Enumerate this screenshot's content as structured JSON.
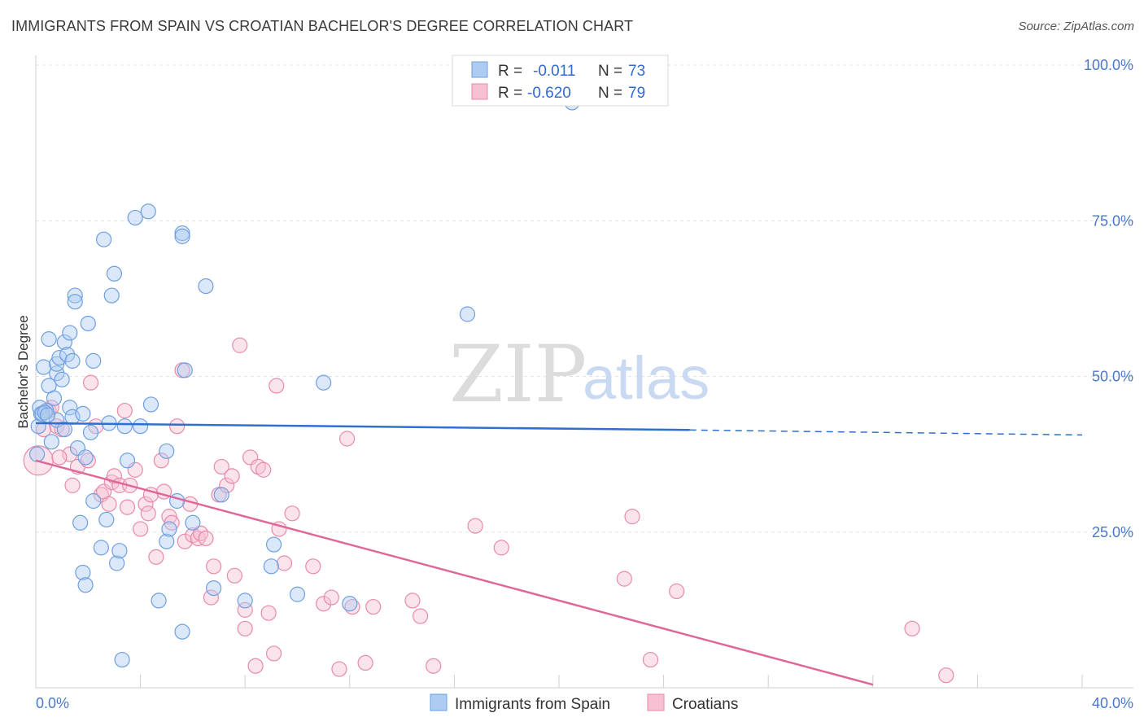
{
  "title": "IMMIGRANTS FROM SPAIN VS CROATIAN BACHELOR'S DEGREE CORRELATION CHART",
  "source": "Source: ZipAtlas.com",
  "watermark": {
    "zip": "ZIP",
    "atlas": "atlas"
  },
  "colors": {
    "blue_fill": "#aecbf2",
    "blue_stroke": "#6f9fdf",
    "blue_line": "#2f6fce",
    "pink_fill": "#f6c0d2",
    "pink_stroke": "#e88aab",
    "pink_line": "#e0669a",
    "grid": "#e2e2e2",
    "accent": "#4a78c8"
  },
  "legend": {
    "r_label": "R =",
    "n_label": "N =",
    "rows": [
      {
        "r": "-0.011",
        "n": "73"
      },
      {
        "r": "-0.620",
        "n": "79"
      }
    ]
  },
  "chart_data": {
    "type": "scatter",
    "title": "IMMIGRANTS FROM SPAIN VS CROATIAN BACHELOR'S DEGREE CORRELATION CHART",
    "xlabel": "",
    "ylabel": "Bachelor's Degree",
    "xlim": [
      0,
      40
    ],
    "ylim": [
      0,
      100
    ],
    "x_tick_labels": [
      "0.0%",
      "40.0%"
    ],
    "y_ticks": [
      25,
      50,
      75,
      100
    ],
    "y_tick_labels": [
      "25.0%",
      "50.0%",
      "75.0%",
      "100.0%"
    ],
    "grid": true,
    "legend_position": "top-center",
    "series": [
      {
        "name": "Immigrants from Spain",
        "color": "blue",
        "trend": {
          "x": [
            0,
            25,
            40
          ],
          "y": [
            42.5,
            41.4,
            40.6
          ],
          "solid_until": 25
        },
        "points": [
          [
            0.1,
            42.0,
            1
          ],
          [
            0.2,
            44.0,
            1
          ],
          [
            0.3,
            51.5,
            1
          ],
          [
            0.4,
            44.5,
            1
          ],
          [
            0.5,
            48.5,
            1
          ],
          [
            0.5,
            56.0,
            1
          ],
          [
            0.6,
            39.5,
            1
          ],
          [
            0.7,
            46.5,
            1
          ],
          [
            0.8,
            43.0,
            1
          ],
          [
            0.8,
            50.5,
            1
          ],
          [
            0.8,
            52.0,
            1
          ],
          [
            0.9,
            53.0,
            1
          ],
          [
            1.0,
            49.5,
            1
          ],
          [
            1.1,
            41.5,
            1
          ],
          [
            1.1,
            55.5,
            1
          ],
          [
            1.2,
            53.5,
            1
          ],
          [
            1.3,
            45.0,
            1
          ],
          [
            1.3,
            57.0,
            1
          ],
          [
            1.4,
            43.5,
            1
          ],
          [
            1.4,
            52.5,
            1
          ],
          [
            1.5,
            63.0,
            1
          ],
          [
            1.5,
            62.0,
            1
          ],
          [
            1.6,
            38.5,
            1
          ],
          [
            1.7,
            26.5,
            1
          ],
          [
            1.8,
            44.0,
            1
          ],
          [
            1.8,
            18.5,
            1
          ],
          [
            1.9,
            16.5,
            1
          ],
          [
            1.9,
            37.0,
            1
          ],
          [
            2.0,
            58.5,
            1
          ],
          [
            2.1,
            41.0,
            1
          ],
          [
            2.2,
            52.5,
            1
          ],
          [
            2.2,
            30.0,
            1
          ],
          [
            2.5,
            22.5,
            1
          ],
          [
            2.6,
            72.0,
            1
          ],
          [
            2.7,
            27.0,
            1
          ],
          [
            2.8,
            42.5,
            1
          ],
          [
            2.9,
            63.0,
            1
          ],
          [
            3.0,
            66.5,
            1
          ],
          [
            3.1,
            20.0,
            1
          ],
          [
            3.2,
            22.0,
            1
          ],
          [
            3.3,
            4.5,
            1
          ],
          [
            3.4,
            42.0,
            1
          ],
          [
            3.5,
            36.5,
            1
          ],
          [
            3.8,
            75.5,
            1
          ],
          [
            4.0,
            42.0,
            1
          ],
          [
            4.3,
            76.5,
            1
          ],
          [
            4.4,
            45.5,
            1
          ],
          [
            4.7,
            14.0,
            1
          ],
          [
            5.0,
            23.5,
            1
          ],
          [
            5.0,
            38.0,
            1
          ],
          [
            5.1,
            25.5,
            1
          ],
          [
            5.4,
            30.0,
            1
          ],
          [
            5.6,
            73.0,
            1
          ],
          [
            5.6,
            72.5,
            1
          ],
          [
            5.6,
            9.0,
            1
          ],
          [
            5.7,
            51.0,
            1
          ],
          [
            6.0,
            26.5,
            1
          ],
          [
            6.5,
            64.5,
            1
          ],
          [
            6.8,
            16.0,
            1
          ],
          [
            7.1,
            31.0,
            1
          ],
          [
            8.0,
            14.0,
            1
          ],
          [
            9.0,
            19.5,
            1
          ],
          [
            9.1,
            23.0,
            1
          ],
          [
            10.0,
            15.0,
            1
          ],
          [
            11.0,
            49.0,
            1
          ],
          [
            12.0,
            13.5,
            1
          ],
          [
            16.5,
            60.0,
            1
          ],
          [
            20.5,
            94.0,
            1
          ],
          [
            0.05,
            37.5,
            1
          ],
          [
            0.15,
            45.0,
            1
          ],
          [
            0.25,
            44.0,
            1
          ],
          [
            0.35,
            44.2,
            1
          ],
          [
            0.45,
            43.8,
            1
          ]
        ]
      },
      {
        "name": "Croatians",
        "color": "pink",
        "trend": {
          "x": [
            0,
            32
          ],
          "y": [
            36.5,
            0.5
          ]
        },
        "points": [
          [
            0.1,
            36.5,
            2
          ],
          [
            0.5,
            44.5,
            1
          ],
          [
            0.6,
            45.0,
            1
          ],
          [
            0.8,
            42.0,
            1
          ],
          [
            1.0,
            41.5,
            1
          ],
          [
            1.3,
            37.5,
            1
          ],
          [
            1.4,
            32.5,
            1
          ],
          [
            1.6,
            35.5,
            1
          ],
          [
            2.0,
            36.5,
            1
          ],
          [
            2.1,
            49.0,
            1
          ],
          [
            2.3,
            42.0,
            1
          ],
          [
            2.5,
            31.0,
            1
          ],
          [
            2.6,
            31.5,
            1
          ],
          [
            2.8,
            29.5,
            1
          ],
          [
            2.9,
            33.0,
            1
          ],
          [
            3.0,
            34.0,
            1
          ],
          [
            3.2,
            32.5,
            1
          ],
          [
            3.4,
            44.5,
            1
          ],
          [
            3.5,
            29.0,
            1
          ],
          [
            3.6,
            32.5,
            1
          ],
          [
            3.8,
            35.0,
            1
          ],
          [
            4.0,
            25.5,
            1
          ],
          [
            4.2,
            29.5,
            1
          ],
          [
            4.3,
            28.0,
            1
          ],
          [
            4.4,
            31.0,
            1
          ],
          [
            4.6,
            21.0,
            1
          ],
          [
            4.8,
            36.5,
            1
          ],
          [
            4.9,
            31.5,
            1
          ],
          [
            5.1,
            27.5,
            1
          ],
          [
            5.2,
            26.5,
            1
          ],
          [
            5.4,
            42.0,
            1
          ],
          [
            5.6,
            51.0,
            1
          ],
          [
            5.7,
            23.5,
            1
          ],
          [
            5.9,
            29.5,
            1
          ],
          [
            6.0,
            24.5,
            1
          ],
          [
            6.2,
            24.0,
            1
          ],
          [
            6.3,
            24.8,
            1
          ],
          [
            6.5,
            24.0,
            1
          ],
          [
            6.7,
            14.5,
            1
          ],
          [
            6.8,
            19.5,
            1
          ],
          [
            7.0,
            31.0,
            1
          ],
          [
            7.1,
            35.5,
            1
          ],
          [
            7.3,
            32.5,
            1
          ],
          [
            7.5,
            34.0,
            1
          ],
          [
            7.6,
            18.0,
            1
          ],
          [
            7.8,
            55.0,
            1
          ],
          [
            8.0,
            12.5,
            1
          ],
          [
            8.0,
            9.5,
            1
          ],
          [
            8.2,
            37.0,
            1
          ],
          [
            8.4,
            3.5,
            1
          ],
          [
            8.5,
            35.5,
            1
          ],
          [
            8.7,
            35.0,
            1
          ],
          [
            8.9,
            12.0,
            1
          ],
          [
            9.1,
            5.5,
            1
          ],
          [
            9.2,
            48.5,
            1
          ],
          [
            9.3,
            25.5,
            1
          ],
          [
            9.5,
            20.0,
            1
          ],
          [
            9.8,
            28.0,
            1
          ],
          [
            10.6,
            19.5,
            1
          ],
          [
            11.0,
            13.5,
            1
          ],
          [
            11.3,
            14.5,
            1
          ],
          [
            11.6,
            3.0,
            1
          ],
          [
            11.9,
            40.0,
            1
          ],
          [
            12.1,
            13.0,
            1
          ],
          [
            12.6,
            4.0,
            1
          ],
          [
            12.9,
            13.0,
            1
          ],
          [
            14.4,
            14.0,
            1
          ],
          [
            14.7,
            11.5,
            1
          ],
          [
            15.2,
            3.5,
            1
          ],
          [
            16.8,
            26.0,
            1
          ],
          [
            17.8,
            22.5,
            1
          ],
          [
            22.5,
            17.5,
            1
          ],
          [
            22.8,
            27.5,
            1
          ],
          [
            23.5,
            4.5,
            1
          ],
          [
            24.5,
            15.5,
            1
          ],
          [
            33.5,
            9.5,
            1
          ],
          [
            34.8,
            2.0,
            1
          ],
          [
            0.3,
            41.5,
            1
          ],
          [
            0.9,
            37.0,
            1
          ]
        ]
      }
    ]
  },
  "bottom_legend": [
    {
      "label": "Immigrants from Spain"
    },
    {
      "label": "Croatians"
    }
  ]
}
